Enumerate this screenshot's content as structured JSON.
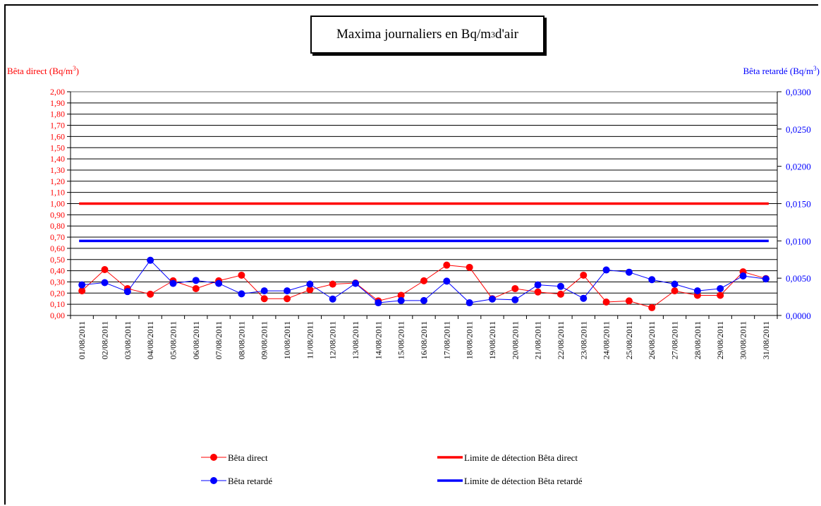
{
  "title": {
    "main": "Maxima journaliers en Bq/m",
    "sup": "3",
    "tail": " d'air"
  },
  "ylabel_left": {
    "main": "Bêta direct (Bq/m",
    "sup": "3",
    "tail": ")"
  },
  "ylabel_right": {
    "main": "Bêta retardé (Bq/m",
    "sup": "3",
    "tail": ")"
  },
  "colors": {
    "red": "#ff0000",
    "blue": "#0000ff",
    "grid": "#000000"
  },
  "chart_data": {
    "type": "line",
    "categories": [
      "01/08/2011",
      "02/08/2011",
      "03/08/2011",
      "04/08/2011",
      "05/08/2011",
      "06/08/2011",
      "07/08/2011",
      "08/08/2011",
      "09/08/2011",
      "10/08/2011",
      "11/08/2011",
      "12/08/2011",
      "13/08/2011",
      "14/08/2011",
      "15/08/2011",
      "16/08/2011",
      "17/08/2011",
      "18/08/2011",
      "19/08/2011",
      "20/08/2011",
      "21/08/2011",
      "22/08/2011",
      "23/08/2011",
      "24/08/2011",
      "25/08/2011",
      "26/08/2011",
      "27/08/2011",
      "28/08/2011",
      "29/08/2011",
      "30/08/2011",
      "31/08/2011"
    ],
    "y_left": {
      "min": 0,
      "max": 2,
      "step": 0.1,
      "ticks": [
        "0,00",
        "0,10",
        "0,20",
        "0,30",
        "0,40",
        "0,50",
        "0,60",
        "0,70",
        "0,80",
        "0,90",
        "1,00",
        "1,10",
        "1,20",
        "1,30",
        "1,40",
        "1,50",
        "1,60",
        "1,70",
        "1,80",
        "1,90",
        "2,00"
      ]
    },
    "y_right": {
      "min": 0,
      "max": 0.03,
      "ticks": [
        "0,0000",
        "0,0050",
        "0,0100",
        "0,0150",
        "0,0200",
        "0,0250",
        "0,0300"
      ]
    },
    "grid": true,
    "legend_position": "bottom",
    "series": [
      {
        "name": "Bêta direct",
        "axis": "left",
        "color": "#ff0000",
        "values": [
          0.22,
          0.41,
          0.24,
          0.19,
          0.31,
          0.24,
          0.31,
          0.36,
          0.15,
          0.15,
          0.23,
          0.28,
          0.29,
          0.13,
          0.18,
          0.31,
          0.45,
          0.43,
          0.15,
          0.24,
          0.21,
          0.19,
          0.36,
          0.12,
          0.13,
          0.07,
          0.22,
          0.18,
          0.18,
          0.39,
          0.33
        ]
      },
      {
        "name": "Bêta retardé",
        "axis": "right",
        "color": "#0000ff",
        "values": [
          0.0041,
          0.0044,
          0.0032,
          0.0074,
          0.0043,
          0.0047,
          0.0043,
          0.0029,
          0.0033,
          0.0033,
          0.0042,
          0.0022,
          0.0043,
          0.0017,
          0.002,
          0.002,
          0.0046,
          0.0017,
          0.0022,
          0.0021,
          0.0041,
          0.0039,
          0.0023,
          0.0061,
          0.0058,
          0.0048,
          0.0042,
          0.0033,
          0.0036,
          0.0053,
          0.0049
        ]
      }
    ],
    "thresholds": [
      {
        "name": "Limite de détection Bêta direct",
        "axis": "left",
        "value": 1.0,
        "color": "#ff0000"
      },
      {
        "name": "Limite de détection Bêta retardé",
        "axis": "right",
        "value": 0.01,
        "color": "#0000ff"
      }
    ]
  }
}
